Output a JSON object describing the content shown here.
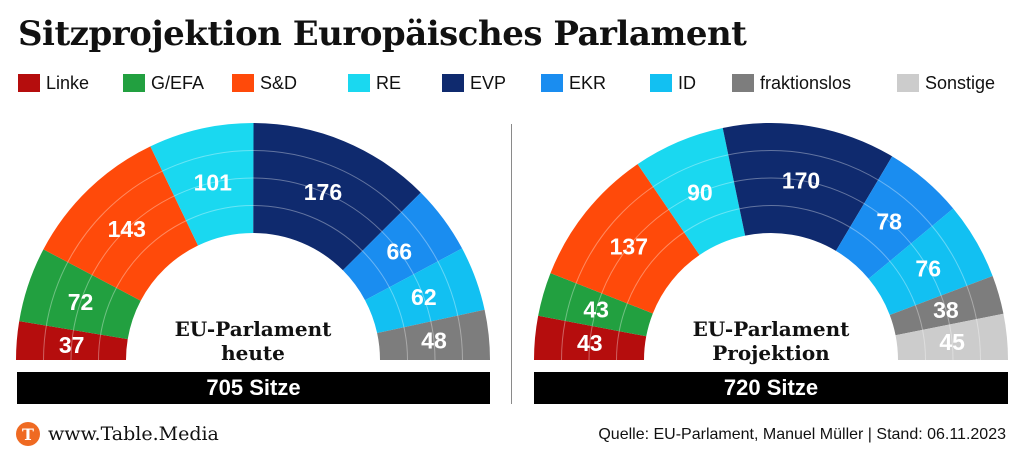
{
  "title": "Sitzprojektion Europäisches Parlament",
  "legend": [
    {
      "label": "Linke",
      "color": "#b50d0d"
    },
    {
      "label": "G/EFA",
      "color": "#22a040"
    },
    {
      "label": "S&D",
      "color": "#ff4a0a"
    },
    {
      "label": "RE",
      "color": "#1ad8f0"
    },
    {
      "label": "EVP",
      "color": "#0f2a6e"
    },
    {
      "label": "EKR",
      "color": "#1a8df0"
    },
    {
      "label": "ID",
      "color": "#12c0f2"
    },
    {
      "label": "fraktionslos",
      "color": "#7d7d7d"
    },
    {
      "label": "Sonstige",
      "color": "#cccccc"
    }
  ],
  "chart_data": [
    {
      "type": "pie",
      "subtype": "half-donut",
      "center_label": [
        "EU-Parlament",
        "heute"
      ],
      "total_label": "705 Sitze",
      "categories": [
        "Linke",
        "G/EFA",
        "S&D",
        "RE",
        "EVP",
        "EKR",
        "ID",
        "fraktionslos"
      ],
      "values": [
        37,
        72,
        143,
        101,
        176,
        66,
        62,
        48
      ]
    },
    {
      "type": "pie",
      "subtype": "half-donut",
      "center_label": [
        "EU-Parlament",
        "Projektion"
      ],
      "total_label": "720 Sitze",
      "categories": [
        "Linke",
        "G/EFA",
        "S&D",
        "RE",
        "EVP",
        "EKR",
        "ID",
        "fraktionslos",
        "Sonstige"
      ],
      "values": [
        43,
        43,
        137,
        90,
        170,
        78,
        76,
        38,
        45
      ]
    }
  ],
  "footer": {
    "logo_letter": "T",
    "site": "www.Table.Media",
    "source": "Quelle: EU-Parlament, Manuel Müller | Stand: 06.11.2023"
  }
}
